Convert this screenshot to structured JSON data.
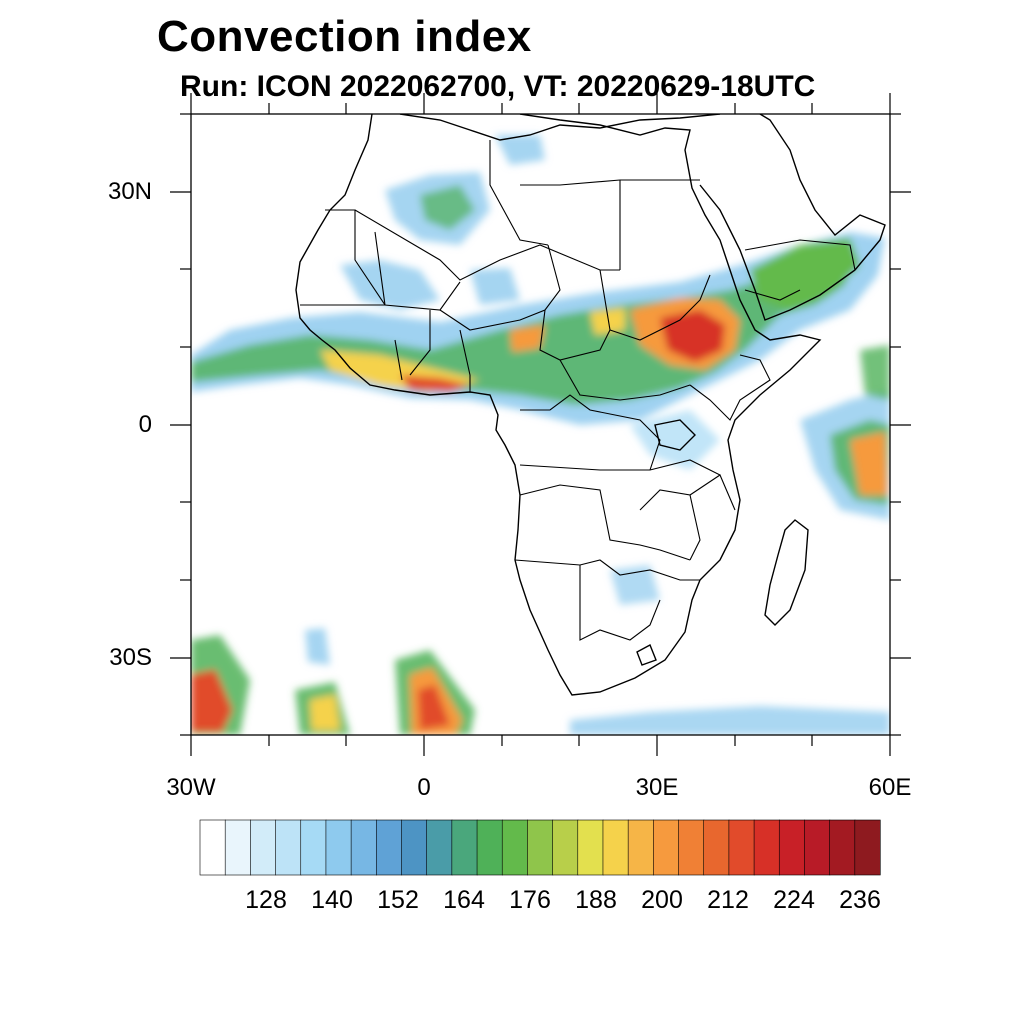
{
  "title": "Convection index",
  "subtitle": "Run: ICON 2022062700,  VT: 20220629-18UTC",
  "map": {
    "region": "Africa",
    "lon_range": [
      -30,
      60
    ],
    "lat_range": [
      -40,
      40
    ],
    "y_ticks": [
      {
        "label": "30N",
        "lat": 30
      },
      {
        "label": "0",
        "lat": 0
      },
      {
        "label": "30S",
        "lat": -30
      }
    ],
    "x_ticks": [
      {
        "label": "30W",
        "lon": -30
      },
      {
        "label": "0",
        "lon": 0
      },
      {
        "label": "30E",
        "lon": 30
      },
      {
        "label": "60E",
        "lon": 60
      }
    ]
  },
  "colorbar": {
    "labels": [
      "128",
      "140",
      "152",
      "164",
      "176",
      "188",
      "200",
      "212",
      "224",
      "236"
    ],
    "colors": [
      "#ffffff",
      "#e9f5fc",
      "#d2ecf9",
      "#bde3f7",
      "#a6daf5",
      "#8ecaee",
      "#77b7e4",
      "#5fa2d6",
      "#4d94c4",
      "#4a9ca8",
      "#4aa77c",
      "#4fb158",
      "#63ba4b",
      "#8fc54b",
      "#b8cf4a",
      "#e3e04e",
      "#f5d24b",
      "#f6b547",
      "#f69a3e",
      "#f08035",
      "#e8672e",
      "#e14b2b",
      "#d73027",
      "#c82027",
      "#b81b27",
      "#a31a22",
      "#8e1a1f"
    ]
  }
}
